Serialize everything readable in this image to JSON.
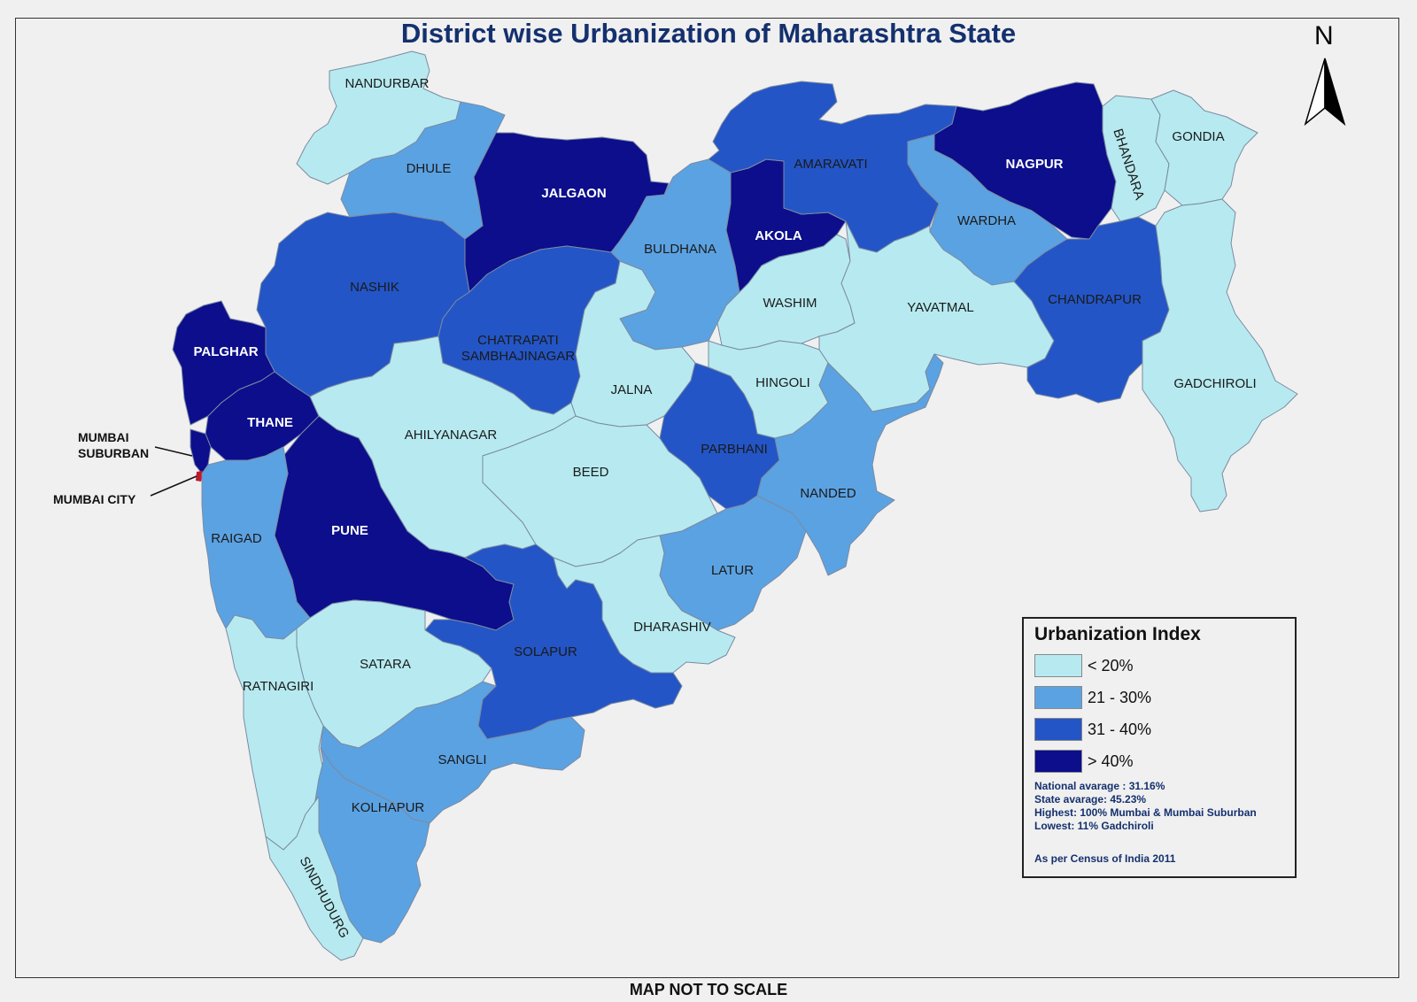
{
  "title": "District wise Urbanization of Maharashtra State",
  "footer": "MAP NOT TO SCALE",
  "north_arrow": "N",
  "colors": {
    "lt20": "#b6eaf0",
    "r21_30": "#5ba2e2",
    "r31_40": "#2355c6",
    "gt40": "#0c0e8c"
  },
  "districts": [
    {
      "name": "NANDURBAR",
      "class": "lt20"
    },
    {
      "name": "DHULE",
      "class": "r21_30"
    },
    {
      "name": "JALGAON",
      "class": "gt40"
    },
    {
      "name": "BULDHANA",
      "class": "r21_30"
    },
    {
      "name": "AKOLA",
      "class": "gt40"
    },
    {
      "name": "AMARAVATI",
      "class": "r31_40"
    },
    {
      "name": "NAGPUR",
      "class": "gt40"
    },
    {
      "name": "BHANDARA",
      "class": "lt20"
    },
    {
      "name": "GONDIA",
      "class": "lt20"
    },
    {
      "name": "WARDHA",
      "class": "r21_30"
    },
    {
      "name": "WASHIM",
      "class": "lt20"
    },
    {
      "name": "YAVATMAL",
      "class": "lt20"
    },
    {
      "name": "CHANDRAPUR",
      "class": "r31_40"
    },
    {
      "name": "GADCHIROLI",
      "class": "lt20"
    },
    {
      "name": "NASHIK",
      "class": "r31_40"
    },
    {
      "name": "PALGHAR",
      "class": "gt40"
    },
    {
      "name": "THANE",
      "class": "gt40"
    },
    {
      "name": "CHATRAPATI",
      "class": "r31_40"
    },
    {
      "name": "SAMBHAJINAGAR",
      "class": "r31_40"
    },
    {
      "name": "JALNA",
      "class": "lt20"
    },
    {
      "name": "HINGOLI",
      "class": "lt20"
    },
    {
      "name": "PARBHANI",
      "class": "r31_40"
    },
    {
      "name": "NANDED",
      "class": "r21_30"
    },
    {
      "name": "AHILYANAGAR",
      "class": "lt20"
    },
    {
      "name": "BEED",
      "class": "lt20"
    },
    {
      "name": "PUNE",
      "class": "gt40"
    },
    {
      "name": "RAIGAD",
      "class": "r21_30"
    },
    {
      "name": "LATUR",
      "class": "r21_30"
    },
    {
      "name": "DHARASHIV",
      "class": "lt20"
    },
    {
      "name": "SOLAPUR",
      "class": "r31_40"
    },
    {
      "name": "SATARA",
      "class": "lt20"
    },
    {
      "name": "RATNAGIRI",
      "class": "lt20"
    },
    {
      "name": "SANGLI",
      "class": "r21_30"
    },
    {
      "name": "KOLHAPUR",
      "class": "r21_30"
    },
    {
      "name": "SINDHUDURG",
      "class": "lt20"
    }
  ],
  "callouts": {
    "mumbai_suburban_1": "MUMBAI",
    "mumbai_suburban_2": "SUBURBAN",
    "mumbai_city": "MUMBAI CITY"
  },
  "legend": {
    "title": "Urbanization Index",
    "items": [
      {
        "label": "< 20%",
        "color": "#b6eaf0"
      },
      {
        "label": "21 - 30%",
        "color": "#5ba2e2"
      },
      {
        "label": "31 - 40%",
        "color": "#2355c6"
      },
      {
        "label": "> 40%",
        "color": "#0c0e8c"
      }
    ],
    "notes": [
      "National avarage : 31.16%",
      "State avarage: 45.23%",
      "Highest: 100% Mumbai & Mumbai Suburban",
      "Lowest: 11%  Gadchiroli"
    ],
    "source": "As per Census of India 2011"
  }
}
